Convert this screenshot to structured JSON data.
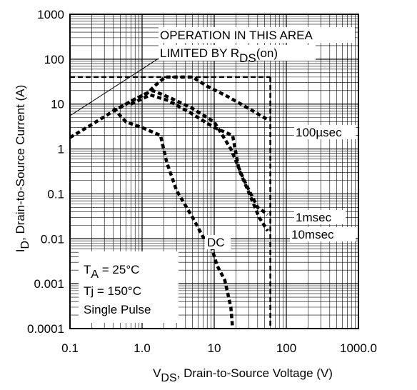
{
  "chart_data": {
    "type": "line",
    "xlabel": {
      "main": "V",
      "sub": "DS",
      "rest": ", Drain-to-Source Voltage (V)"
    },
    "ylabel": {
      "main": "I",
      "sub": "D",
      "rest": ", Drain-to-Source Current (A)"
    },
    "x_scale": "log",
    "y_scale": "log",
    "xlim": [
      0.1,
      1000
    ],
    "ylim": [
      0.0001,
      1000
    ],
    "grid": true,
    "x_ticks": [
      {
        "value": 0.1,
        "label": "0.1"
      },
      {
        "value": 1,
        "label": "1.0"
      },
      {
        "value": 10,
        "label": "10"
      },
      {
        "value": 100,
        "label": "100"
      },
      {
        "value": 1000,
        "label": "1000.0"
      }
    ],
    "y_ticks": [
      {
        "value": 1000,
        "label": "1000"
      },
      {
        "value": 100,
        "label": "100"
      },
      {
        "value": 10,
        "label": "10"
      },
      {
        "value": 1,
        "label": "1"
      },
      {
        "value": 0.1,
        "label": "0.1"
      },
      {
        "value": 0.01,
        "label": "0.01"
      },
      {
        "value": 0.001,
        "label": "0.001"
      },
      {
        "value": 0.0001,
        "label": "0.0001"
      }
    ],
    "limits": {
      "current_max_A": 40,
      "voltage_max_V": 60,
      "rds_on_line": [
        [
          0.1,
          5.5
        ],
        [
          2.1,
          130
        ]
      ]
    },
    "series": [
      {
        "name": "100µsec",
        "points": [
          [
            0.1,
            1.8
          ],
          [
            0.2,
            3.5
          ],
          [
            0.4,
            7
          ],
          [
            0.8,
            13
          ],
          [
            1.2,
            18
          ],
          [
            1.6,
            28
          ],
          [
            2.1,
            40
          ],
          [
            5,
            40
          ],
          [
            8,
            25
          ],
          [
            15,
            15
          ],
          [
            30,
            8
          ],
          [
            55,
            4.5
          ]
        ]
      },
      {
        "name": "1msec",
        "points": [
          [
            0.4,
            7
          ],
          [
            0.8,
            13
          ],
          [
            1.4,
            20
          ],
          [
            2.4,
            14
          ],
          [
            5,
            8
          ],
          [
            10,
            4
          ],
          [
            17,
            1
          ],
          [
            26,
            0.2
          ],
          [
            40,
            0.05
          ],
          [
            55,
            0.035
          ]
        ]
      },
      {
        "name": "10msec",
        "points": [
          [
            0.7,
            10
          ],
          [
            1.3,
            16
          ],
          [
            2.3,
            12
          ],
          [
            5,
            6
          ],
          [
            10,
            3
          ],
          [
            18,
            2
          ],
          [
            22,
            0.35
          ],
          [
            30,
            0.11
          ],
          [
            42,
            0.03
          ],
          [
            55,
            0.015
          ]
        ]
      },
      {
        "name": "DC",
        "points": [
          [
            0.4,
            8
          ],
          [
            0.6,
            4
          ],
          [
            1.0,
            3
          ],
          [
            1.8,
            2
          ],
          [
            2.2,
            0.5
          ],
          [
            3,
            0.12
          ],
          [
            5,
            0.03
          ],
          [
            7,
            0.011
          ],
          [
            9,
            0.007
          ],
          [
            11,
            0.0025
          ],
          [
            14,
            0.0012
          ],
          [
            17,
            0.0003
          ],
          [
            18,
            0.0001
          ]
        ]
      }
    ],
    "annotations": {
      "rds_line1": "OPERATION IN THIS AREA",
      "rds_line2_main": "LIMITED BY R",
      "rds_line2_sub": "DS",
      "rds_line2_tail": "(on)",
      "cond_ta_main": "T",
      "cond_ta_sub": "A",
      "cond_ta_rest": " = 25°C",
      "cond_tj": "Tj = 150°C",
      "cond_pulse": "Single Pulse"
    }
  }
}
